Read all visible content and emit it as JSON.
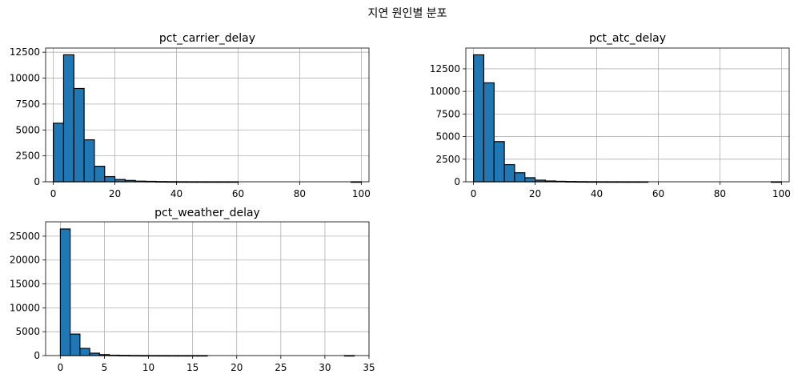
{
  "figure": {
    "suptitle": "지연 원인별 분포"
  },
  "chart_data": [
    {
      "type": "bar",
      "title": "pct_carrier_delay",
      "xlabel": "",
      "ylabel": "",
      "xlim": [
        -2.5,
        102.5
      ],
      "ylim": [
        0,
        12900
      ],
      "grid": true,
      "xticks": [
        0,
        20,
        40,
        60,
        80,
        100
      ],
      "xtick_labels": [
        "0",
        "20",
        "40",
        "60",
        "80",
        "100"
      ],
      "yticks": [
        0,
        2500,
        5000,
        7500,
        10000,
        12500
      ],
      "ytick_labels": [
        "0",
        "2500",
        "5000",
        "7500",
        "10000",
        "12500"
      ],
      "bin_edges": [
        0,
        3.33,
        6.67,
        10,
        13.33,
        16.67,
        20,
        23.33,
        26.67,
        30,
        33.33,
        36.67,
        40,
        43.33,
        46.67,
        50,
        53.33,
        56.67,
        60,
        63.33,
        66.67,
        70,
        73.33,
        76.67,
        80,
        83.33,
        86.67,
        90,
        93.33,
        96.67,
        100
      ],
      "values": [
        5650,
        12250,
        9000,
        4050,
        1500,
        500,
        220,
        130,
        60,
        40,
        20,
        10,
        5,
        3,
        2,
        1,
        1,
        1,
        0,
        0,
        0,
        0,
        0,
        0,
        0,
        0,
        0,
        0,
        0,
        1
      ]
    },
    {
      "type": "bar",
      "title": "pct_atc_delay",
      "xlabel": "",
      "ylabel": "",
      "xlim": [
        -2.5,
        102.5
      ],
      "ylim": [
        0,
        14800
      ],
      "grid": true,
      "xticks": [
        0,
        20,
        40,
        60,
        80,
        100
      ],
      "xtick_labels": [
        "0",
        "20",
        "40",
        "60",
        "80",
        "100"
      ],
      "yticks": [
        0,
        2500,
        5000,
        7500,
        10000,
        12500
      ],
      "ytick_labels": [
        "0",
        "2500",
        "5000",
        "7500",
        "10000",
        "12500"
      ],
      "bin_edges": [
        0,
        3.33,
        6.67,
        10,
        13.33,
        16.67,
        20,
        23.33,
        26.67,
        30,
        33.33,
        36.67,
        40,
        43.33,
        46.67,
        50,
        53.33,
        56.67,
        60,
        63.33,
        66.67,
        70,
        73.33,
        76.67,
        80,
        83.33,
        86.67,
        90,
        93.33,
        96.67,
        100
      ],
      "values": [
        14050,
        10950,
        4450,
        1900,
        1000,
        450,
        180,
        90,
        50,
        30,
        15,
        8,
        5,
        3,
        2,
        1,
        1,
        0,
        0,
        0,
        0,
        0,
        0,
        0,
        0,
        0,
        0,
        0,
        0,
        1
      ]
    },
    {
      "type": "bar",
      "title": "pct_weather_delay",
      "xlabel": "",
      "ylabel": "",
      "xlim": [
        -1.67,
        35
      ],
      "ylim": [
        0,
        28000
      ],
      "grid": true,
      "xticks": [
        0,
        5,
        10,
        15,
        20,
        25,
        30,
        35
      ],
      "xtick_labels": [
        "0",
        "5",
        "10",
        "15",
        "20",
        "25",
        "30",
        "35"
      ],
      "yticks": [
        0,
        5000,
        10000,
        15000,
        20000,
        25000
      ],
      "ytick_labels": [
        "0",
        "5000",
        "10000",
        "15000",
        "20000",
        "25000"
      ],
      "bin_edges": [
        0,
        1.11,
        2.22,
        3.33,
        4.44,
        5.56,
        6.67,
        7.78,
        8.89,
        10,
        11.11,
        12.22,
        13.33,
        14.44,
        15.56,
        16.67,
        17.78,
        18.89,
        20,
        21.11,
        22.22,
        23.33,
        24.44,
        25.56,
        26.67,
        27.78,
        28.89,
        30,
        31.11,
        32.22,
        33.33
      ],
      "values": [
        26500,
        4500,
        1500,
        500,
        200,
        80,
        40,
        20,
        10,
        5,
        3,
        2,
        1,
        1,
        1,
        0,
        0,
        0,
        0,
        0,
        0,
        0,
        0,
        0,
        0,
        0,
        0,
        0,
        0,
        1
      ]
    }
  ]
}
